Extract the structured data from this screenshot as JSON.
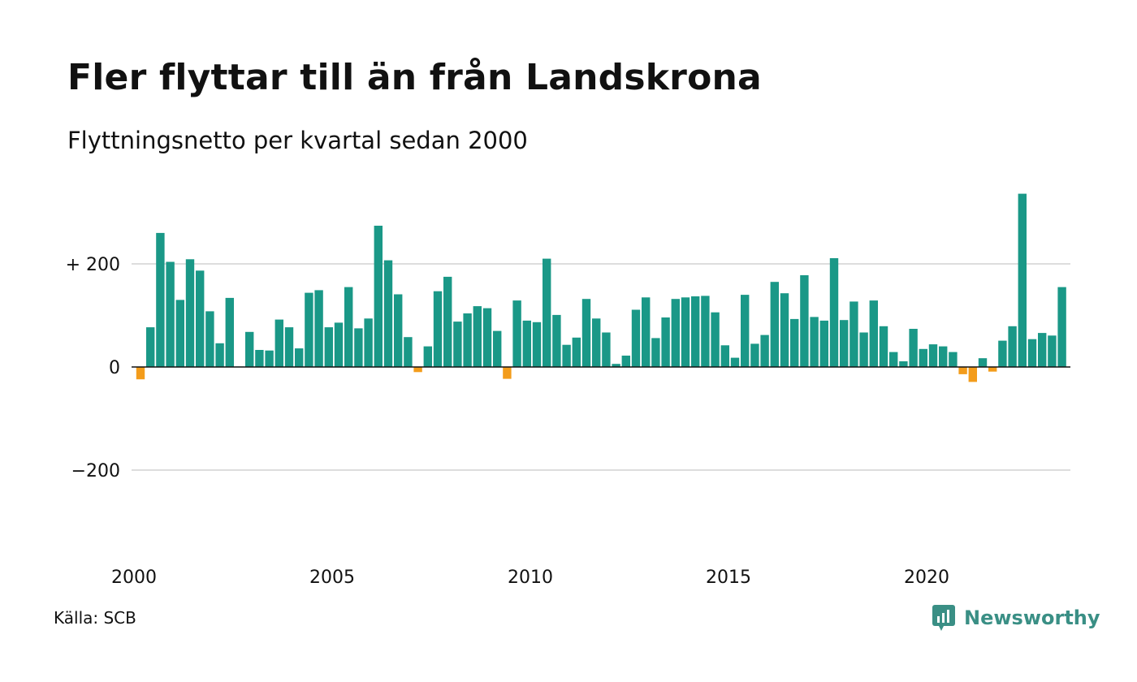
{
  "title": "Fler flyttar till än från Landskrona",
  "subtitle": "Flyttningsnetto per kvartal sedan 2000",
  "source": "Källa: SCB",
  "logo_text": "Newsworthy",
  "colors": {
    "positive": "#1a9887",
    "negative": "#f39c1b",
    "grid": "#dddddd",
    "zero_line": "#111111",
    "logo": "#3a8f85"
  },
  "chart_data": {
    "type": "bar",
    "title": "Fler flyttar till än från Landskrona",
    "subtitle": "Flyttningsnetto per kvartal sedan 2000",
    "x_label_years": [
      2000,
      2005,
      2010,
      2015,
      2020
    ],
    "y_ticks": [
      {
        "value": 200,
        "label": "+ 200"
      },
      {
        "value": 0,
        "label": "0"
      },
      {
        "value": -200,
        "label": "−200"
      }
    ],
    "ylim": [
      -370,
      370
    ],
    "grid": true,
    "series": [
      {
        "values": [
          -24,
          77,
          260,
          204,
          130,
          209,
          187,
          108,
          46,
          134,
          1,
          68,
          33,
          32,
          92,
          77,
          36,
          144,
          149,
          77,
          86,
          155,
          75,
          94,
          274,
          207,
          141,
          58,
          -10,
          40,
          147,
          175,
          88,
          104,
          118,
          114,
          70,
          -23,
          129,
          90,
          87,
          210,
          101,
          43,
          57,
          132,
          94,
          67,
          6,
          22,
          111,
          135,
          56,
          96,
          132,
          135,
          137,
          138,
          106,
          42,
          18,
          140,
          45,
          62,
          165,
          143,
          93,
          178,
          97,
          90,
          211,
          91,
          127,
          67,
          129,
          79,
          29,
          11,
          74,
          35,
          44,
          40,
          29,
          -14,
          -29,
          17,
          -9,
          51,
          79,
          336,
          54,
          66,
          61,
          155
        ]
      }
    ]
  }
}
